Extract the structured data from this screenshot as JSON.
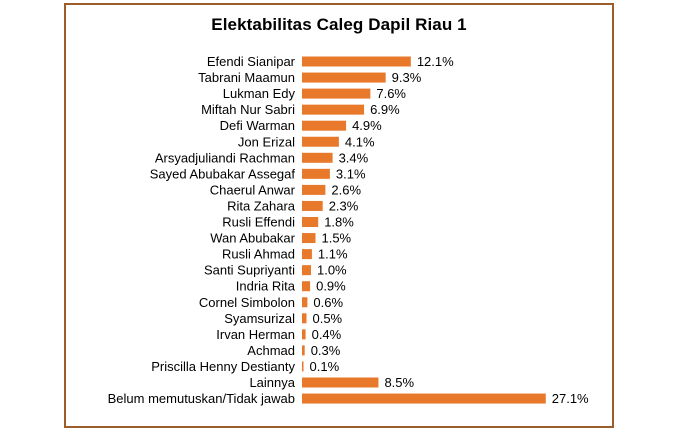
{
  "chart_data": {
    "type": "bar",
    "orientation": "horizontal",
    "title": "Elektabilitas Caleg Dapil Riau 1",
    "xlabel": "",
    "ylabel": "",
    "bar_color": "#e8792b",
    "border_color": "#9b5d2a",
    "grid": false,
    "legend": "none",
    "categories": [
      "Efendi Sianipar",
      "Tabrani Maamun",
      "Lukman Edy",
      "Miftah Nur Sabri",
      "Defi Warman",
      "Jon Erizal",
      "Arsyadjuliandi Rachman",
      "Sayed Abubakar Assegaf",
      "Chaerul Anwar",
      "Rita Zahara",
      "Rusli Effendi",
      "Wan Abubakar",
      "Rusli Ahmad",
      "Santi Supriyanti",
      "Indria Rita",
      "Cornel Simbolon",
      "Syamsurizal",
      "Irvan Herman",
      "Achmad",
      "Priscilla Henny Destianty",
      "Lainnya",
      "Belum memutuskan/Tidak jawab"
    ],
    "values": [
      12.1,
      9.3,
      7.6,
      6.9,
      4.9,
      4.1,
      3.4,
      3.1,
      2.6,
      2.3,
      1.8,
      1.5,
      1.1,
      1.0,
      0.9,
      0.6,
      0.5,
      0.4,
      0.3,
      0.1,
      8.5,
      27.1
    ],
    "labels": [
      "12.1%",
      "9.3%",
      "7.6%",
      "6.9%",
      "4.9%",
      "4.1%",
      "3.4%",
      "3.1%",
      "2.6%",
      "2.3%",
      "1.8%",
      "1.5%",
      "1.1%",
      "1.0%",
      "0.9%",
      "0.6%",
      "0.5%",
      "0.4%",
      "0.3%",
      "0.1%",
      "8.5%",
      "27.1%"
    ]
  }
}
